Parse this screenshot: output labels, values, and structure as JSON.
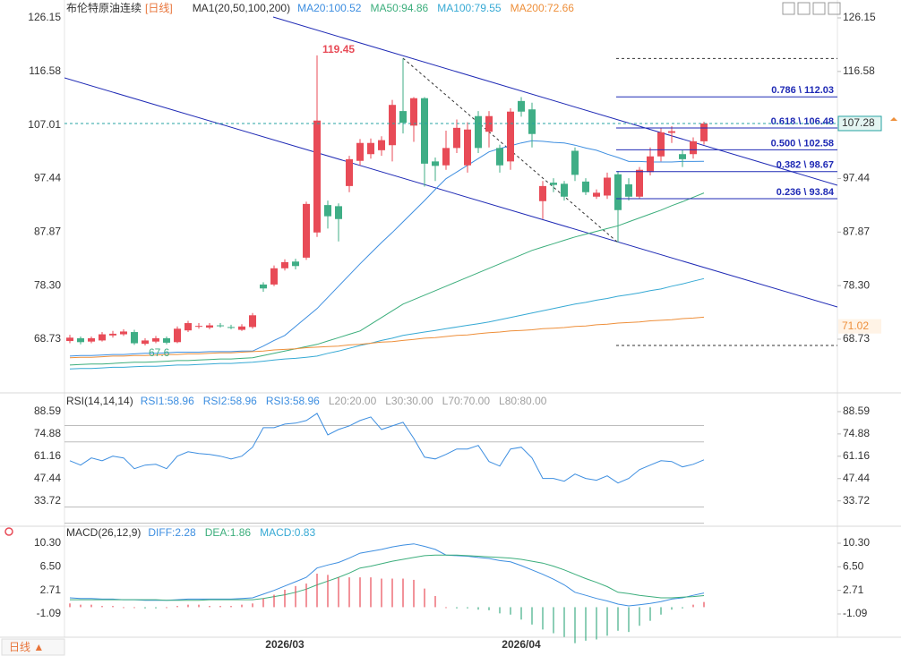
{
  "chart_data": [
    {
      "type": "candlestick",
      "title": "布伦特原油连续",
      "period": "[日线]",
      "indicator": "MA1(20,50,100,200)",
      "up_color": "#e84b57",
      "down_color": "#3fae86",
      "categories": [
        null,
        null,
        null,
        null,
        null,
        null,
        null,
        null,
        null,
        null,
        null,
        null,
        null,
        null,
        null,
        null,
        null,
        null,
        null,
        null,
        "2026/03",
        null,
        null,
        null,
        null,
        null,
        null,
        null,
        null,
        null,
        null,
        null,
        null,
        null,
        null,
        null,
        null,
        null,
        null,
        null,
        null,
        null,
        "2026/04",
        null,
        null,
        null,
        null,
        null,
        null,
        null,
        null,
        null,
        null,
        null,
        null,
        null,
        null,
        null,
        null,
        null
      ],
      "open": [
        68.4,
        68.9,
        68.3,
        68.5,
        69.4,
        69.6,
        70.0,
        67.9,
        68.3,
        68.9,
        68.2,
        70.3,
        71.0,
        70.8,
        71.2,
        70.9,
        70.4,
        70.9,
        78.5,
        78.5,
        81.4,
        82.6,
        83.3,
        87.8,
        92.7,
        92.5,
        96.1,
        100.6,
        101.8,
        102.5,
        103.4,
        109.5,
        106.9,
        111.8,
        100.5,
        99.8,
        102.9,
        99.8,
        108.6,
        105.8,
        102.9,
        100.5,
        111.3,
        109.8,
        93.4,
        96.7,
        96.5,
        102.4,
        96.9,
        94.2,
        94.4,
        98.2,
        96.4,
        94.2,
        98.6,
        101.4,
        105.6,
        101.8,
        101.8,
        104.1
      ],
      "high": [
        69.5,
        69.2,
        69.2,
        70.0,
        70.2,
        70.5,
        70.4,
        68.9,
        69.3,
        69.2,
        71.0,
        72.0,
        71.6,
        71.6,
        71.6,
        71.3,
        71.4,
        73.4,
        78.9,
        81.9,
        83.0,
        83.1,
        93.3,
        119.45,
        93.5,
        93.0,
        101.5,
        104.5,
        104.6,
        105.0,
        111.5,
        118.9,
        112.0,
        112.0,
        101.2,
        106.0,
        108.0,
        107.5,
        109.5,
        109.5,
        103.5,
        110.0,
        112.0,
        111.0,
        97.0,
        97.5,
        97.0,
        103.0,
        97.5,
        95.5,
        98.5,
        98.8,
        97.5,
        99.5,
        103.0,
        106.5,
        106.8,
        102.5,
        104.8,
        107.6
      ],
      "low": [
        68.0,
        67.8,
        68.0,
        68.3,
        69.0,
        69.3,
        67.7,
        67.6,
        68.0,
        67.8,
        68.0,
        70.0,
        70.6,
        70.5,
        70.8,
        70.5,
        70.2,
        70.6,
        77.2,
        78.2,
        81.0,
        81.2,
        82.9,
        87.0,
        88.5,
        86.2,
        95.0,
        99.8,
        101.0,
        101.5,
        100.5,
        105.5,
        104.0,
        96.0,
        97.0,
        99.0,
        102.0,
        98.5,
        102.0,
        103.0,
        98.5,
        99.0,
        108.5,
        103.0,
        90.2,
        95.0,
        93.5,
        97.0,
        94.5,
        93.8,
        93.8,
        86.04,
        93.5,
        93.8,
        98.0,
        100.5,
        103.8,
        99.5,
        101.0,
        103.5
      ],
      "close": [
        69.0,
        68.2,
        68.9,
        69.6,
        69.7,
        70.1,
        68.0,
        68.5,
        68.9,
        68.1,
        70.6,
        71.6,
        71.1,
        71.2,
        71.1,
        70.8,
        71.0,
        73.0,
        77.8,
        81.4,
        82.5,
        81.8,
        92.9,
        107.8,
        90.7,
        90.2,
        100.9,
        103.8,
        103.8,
        104.3,
        110.6,
        107.4,
        111.8,
        100.1,
        99.7,
        102.9,
        106.5,
        106.2,
        102.9,
        108.6,
        99.8,
        109.4,
        109.4,
        105.4,
        96.1,
        96.3,
        94.2,
        98.1,
        95.0,
        94.9,
        97.6,
        91.8,
        94.2,
        99.0,
        101.4,
        105.7,
        105.9,
        100.9,
        104.1,
        107.28
      ],
      "series": [
        {
          "name": "MA20:100.52",
          "color": "#3d8ee0",
          "values": [
            65.7,
            65.8,
            65.8,
            65.9,
            66.0,
            66.0,
            66.1,
            66.2,
            66.2,
            66.3,
            66.4,
            66.4,
            66.4,
            66.5,
            66.5,
            66.5,
            66.6,
            66.6,
            67.5,
            68.5,
            69.4,
            71.0,
            72.6,
            74.2,
            76.2,
            78.2,
            80.2,
            82.2,
            84.1,
            86.0,
            87.8,
            89.7,
            91.6,
            93.5,
            95.5,
            97.4,
            98.6,
            99.8,
            101.0,
            102.2,
            102.8,
            103.3,
            103.8,
            104.2,
            104.1,
            103.9,
            103.8,
            103.4,
            102.9,
            102.5,
            101.8,
            101.2,
            100.5,
            100.5,
            100.4,
            100.4,
            100.4,
            100.5,
            100.5,
            100.52
          ]
        },
        {
          "name": "MA50:94.86",
          "color": "#3cae7c",
          "values": [
            64.1,
            64.2,
            64.3,
            64.3,
            64.4,
            64.5,
            64.6,
            64.6,
            64.7,
            64.8,
            64.9,
            64.9,
            65.0,
            65.1,
            65.2,
            65.2,
            65.3,
            65.4,
            65.8,
            66.2,
            66.6,
            67.0,
            67.4,
            67.8,
            68.4,
            69.0,
            69.6,
            70.2,
            71.4,
            72.6,
            73.8,
            75.0,
            75.8,
            76.6,
            77.4,
            78.2,
            79.0,
            79.8,
            80.6,
            81.4,
            82.2,
            83.0,
            83.8,
            84.6,
            85.2,
            85.8,
            86.4,
            87.0,
            87.5,
            88.0,
            88.5,
            89.0,
            89.7,
            90.4,
            91.1,
            91.8,
            92.6,
            93.3,
            94.1,
            94.86
          ]
        },
        {
          "name": "MA100:79.55",
          "color": "#36a9d4",
          "values": [
            63.4,
            63.5,
            63.5,
            63.6,
            63.7,
            63.7,
            63.8,
            63.9,
            63.9,
            64.0,
            64.1,
            64.1,
            64.2,
            64.3,
            64.4,
            64.4,
            64.5,
            64.6,
            64.8,
            65.0,
            65.2,
            65.3,
            65.5,
            65.7,
            66.2,
            66.6,
            67.1,
            67.6,
            68.0,
            68.5,
            68.9,
            69.4,
            69.7,
            70.0,
            70.3,
            70.6,
            70.9,
            71.2,
            71.5,
            71.8,
            72.2,
            72.6,
            73.0,
            73.4,
            73.8,
            74.2,
            74.6,
            75.0,
            75.3,
            75.7,
            76.0,
            76.4,
            76.7,
            77.0,
            77.4,
            77.7,
            78.2,
            78.6,
            79.1,
            79.55
          ]
        },
        {
          "name": "MA200:72.66",
          "color": "#ee8f3a",
          "values": [
            65.4,
            65.5,
            65.5,
            65.6,
            65.7,
            65.7,
            65.8,
            65.8,
            65.9,
            66.0,
            66.0,
            66.1,
            66.1,
            66.2,
            66.3,
            66.3,
            66.4,
            66.5,
            66.6,
            66.8,
            66.9,
            67.0,
            67.2,
            67.3,
            67.4,
            67.5,
            67.7,
            67.8,
            68.0,
            68.2,
            68.3,
            68.5,
            68.7,
            68.9,
            69.0,
            69.2,
            69.4,
            69.5,
            69.7,
            69.9,
            70.0,
            70.2,
            70.3,
            70.4,
            70.6,
            70.7,
            70.8,
            71.0,
            71.1,
            71.3,
            71.4,
            71.6,
            71.7,
            71.8,
            72.0,
            72.1,
            72.2,
            72.4,
            72.5,
            72.66
          ]
        }
      ],
      "ylim": [
        59.29,
        128.55
      ],
      "yticks": [
        126.15,
        116.58,
        107.01,
        97.44,
        87.87,
        {
          "value": 78.3,
          "label": "78.30"
        },
        68.73
      ],
      "fib_levels": [
        {
          "value": 112.03,
          "label": "0.786 \\ 112.03"
        },
        {
          "value": 106.48,
          "label": "0.618 \\ 106.48"
        },
        {
          "value": 102.58,
          "label": "0.500 \\ 102.58"
        },
        {
          "value": 98.67,
          "label": "0.382 \\ 98.67"
        },
        {
          "value": 93.84,
          "label": "0.236 \\ 93.84"
        }
      ],
      "axis_marker": {
        "value": 71.02,
        "color": "#ee8f3a"
      }
    },
    {
      "type": "line",
      "title": "RSI(14,14,14)",
      "color": "#3d8ee0",
      "legend": [
        "RSI1:58.96",
        "RSI2:58.96",
        "RSI3:58.96"
      ],
      "levels": [
        {
          "value": 20,
          "label": "L20:20.00"
        },
        {
          "value": 30,
          "label": "L30:30.00"
        },
        {
          "value": 70,
          "label": "L70:70.00"
        },
        {
          "value": 80,
          "label": "L80:80.00"
        }
      ],
      "values": [
        58.4,
        55.7,
        60.1,
        58.4,
        61.2,
        60.1,
        53.5,
        55.7,
        56.2,
        53.5,
        61.2,
        63.9,
        62.8,
        62.3,
        61.2,
        59.5,
        61.2,
        66.7,
        78.7,
        78.7,
        80.9,
        81.5,
        83.1,
        87.5,
        74.3,
        77.6,
        79.8,
        83.1,
        85.3,
        77.6,
        79.8,
        82.0,
        72.1,
        60.6,
        59.5,
        62.3,
        65.6,
        65.6,
        67.8,
        57.9,
        55.1,
        65.6,
        66.7,
        60.1,
        47.5,
        47.5,
        45.8,
        50.2,
        47.5,
        46.4,
        49.1,
        44.7,
        47.5,
        52.9,
        55.7,
        58.4,
        57.9,
        54.6,
        56.2,
        58.96
      ],
      "ylim": [
        19.8,
        97.91
      ],
      "yticks": [
        88.59,
        74.88,
        61.16,
        47.44,
        33.72
      ]
    },
    {
      "type": "macd",
      "title": "MACD(26,12,9)",
      "up_color": "#e84b57",
      "down_color": "#3fae86",
      "series": [
        {
          "name": "DIFF:2.28",
          "color": "#3d8ee0",
          "values": [
            1.5,
            1.4,
            1.4,
            1.3,
            1.3,
            1.2,
            1.2,
            1.1,
            1.1,
            1.1,
            1.2,
            1.3,
            1.3,
            1.3,
            1.3,
            1.3,
            1.4,
            1.5,
            2.1,
            2.7,
            3.4,
            4.1,
            4.8,
            6.3,
            6.8,
            7.2,
            7.9,
            8.7,
            9.0,
            9.3,
            9.7,
            10.0,
            10.2,
            9.8,
            9.3,
            8.4,
            8.3,
            8.2,
            8.0,
            7.85,
            7.5,
            7.3,
            6.7,
            6.0,
            5.3,
            4.5,
            3.6,
            2.4,
            1.9,
            1.4,
            1.0,
            0.5,
            0.2,
            0.4,
            0.6,
            0.9,
            1.3,
            1.5,
            1.9,
            2.28
          ]
        },
        {
          "name": "DEA:1.86",
          "color": "#3cae7c",
          "values": [
            1.2,
            1.2,
            1.2,
            1.2,
            1.2,
            1.2,
            1.2,
            1.2,
            1.2,
            1.1,
            1.1,
            1.1,
            1.1,
            1.2,
            1.2,
            1.2,
            1.2,
            1.2,
            1.4,
            1.7,
            2.0,
            2.4,
            2.9,
            3.6,
            4.2,
            4.8,
            5.5,
            6.3,
            6.6,
            7.0,
            7.4,
            7.7,
            8.0,
            8.3,
            8.4,
            8.4,
            8.4,
            8.3,
            8.2,
            8.1,
            8.0,
            7.9,
            7.7,
            7.4,
            7.1,
            6.6,
            6.0,
            5.3,
            4.6,
            4.0,
            3.3,
            2.4,
            2.2,
            1.9,
            1.7,
            1.5,
            1.5,
            1.6,
            1.7,
            1.86
          ]
        },
        {
          "name": "MACD:0.83",
          "color": "#36a9d4",
          "values": [
            0.6,
            0.4,
            0.4,
            0.2,
            0.2,
            0.0,
            0.0,
            -0.2,
            -0.2,
            0.0,
            0.2,
            0.4,
            0.4,
            0.2,
            0.2,
            0.2,
            0.4,
            0.6,
            1.4,
            2.0,
            2.8,
            3.4,
            3.8,
            5.4,
            5.2,
            4.8,
            4.8,
            4.8,
            4.8,
            4.6,
            4.6,
            4.6,
            4.4,
            3.0,
            1.8,
            0.0,
            -0.2,
            -0.2,
            -0.4,
            -0.5,
            -1.0,
            -1.2,
            -2.0,
            -2.8,
            -3.6,
            -4.2,
            -4.8,
            -5.8,
            -5.4,
            -5.2,
            -4.6,
            -3.8,
            -4.0,
            -3.0,
            -2.2,
            -1.2,
            -0.4,
            -0.2,
            0.4,
            0.83
          ]
        }
      ],
      "ylim": [
        -4.84,
        12.46
      ],
      "yticks": [
        {
          "value": 10.3,
          "label": "10.30"
        },
        {
          "value": 6.5,
          "label": "6.50"
        },
        2.71,
        -1.09
      ]
    }
  ],
  "toolbar": {
    "period_button": "日线 ▲"
  }
}
